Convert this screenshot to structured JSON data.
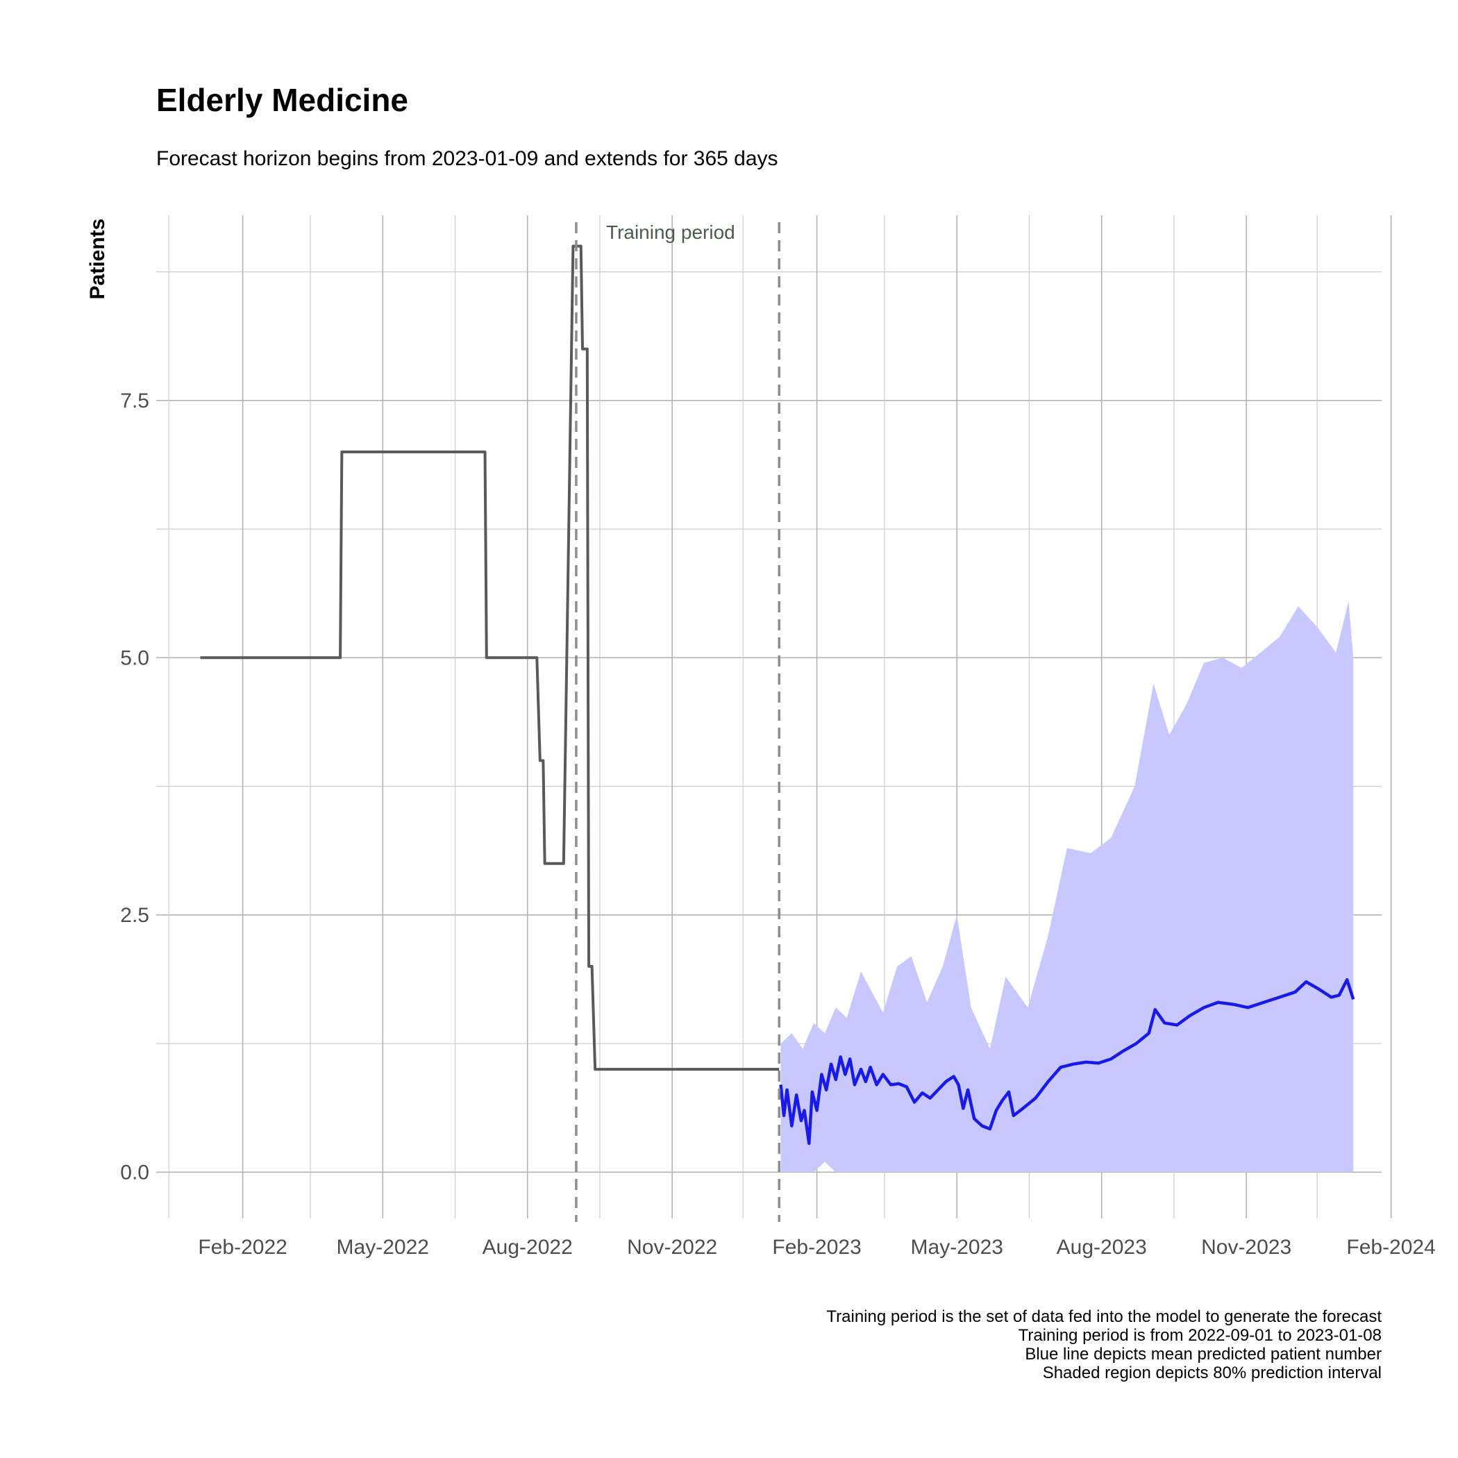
{
  "chart_data": {
    "type": "line",
    "title": "Elderly Medicine",
    "subtitle": "Forecast horizon begins from 2023-01-09 and extends for 365 days",
    "xlabel": "",
    "ylabel": "Patients",
    "x_type": "date",
    "xlim": [
      "2021-12-08",
      "2024-01-26"
    ],
    "ylim": [
      -0.45,
      9.3
    ],
    "grid": true,
    "x_ticks": [
      {
        "date": "2022-02-01",
        "label": "Feb-2022"
      },
      {
        "date": "2022-05-01",
        "label": "May-2022"
      },
      {
        "date": "2022-08-01",
        "label": "Aug-2022"
      },
      {
        "date": "2022-11-01",
        "label": "Nov-2022"
      },
      {
        "date": "2023-02-01",
        "label": "Feb-2023"
      },
      {
        "date": "2023-05-01",
        "label": "May-2023"
      },
      {
        "date": "2023-08-01",
        "label": "Aug-2023"
      },
      {
        "date": "2023-11-01",
        "label": "Nov-2023"
      },
      {
        "date": "2024-02-01",
        "label": "Feb-2024"
      }
    ],
    "x_minor_ticks": [
      "2021-12-16",
      "2022-03-16",
      "2022-06-16",
      "2022-09-16",
      "2022-12-16",
      "2023-03-16",
      "2023-06-16",
      "2023-09-16",
      "2023-12-16"
    ],
    "y_ticks": [
      {
        "value": 0,
        "label": "0.0"
      },
      {
        "value": 2.5,
        "label": "2.5"
      },
      {
        "value": 5,
        "label": "5.0"
      },
      {
        "value": 7.5,
        "label": "7.5"
      }
    ],
    "y_minor_ticks": [
      1.25,
      3.75,
      6.25,
      8.75
    ],
    "training_period": {
      "start": "2022-09-01",
      "end": "2023-01-08",
      "label": "Training period"
    },
    "series": [
      {
        "role": "historical",
        "color": "#595959",
        "points": [
          [
            "2022-01-05",
            5
          ],
          [
            "2022-04-04",
            5
          ],
          [
            "2022-04-05",
            7
          ],
          [
            "2022-07-05",
            7
          ],
          [
            "2022-07-06",
            5
          ],
          [
            "2022-08-07",
            5
          ],
          [
            "2022-08-09",
            4
          ],
          [
            "2022-08-11",
            4
          ],
          [
            "2022-08-12",
            3
          ],
          [
            "2022-08-24",
            3
          ],
          [
            "2022-08-30",
            9
          ],
          [
            "2022-09-04",
            9
          ],
          [
            "2022-09-05",
            8
          ],
          [
            "2022-09-08",
            8
          ],
          [
            "2022-09-09",
            2
          ],
          [
            "2022-09-11",
            2
          ],
          [
            "2022-09-13",
            1
          ],
          [
            "2023-01-08",
            1
          ]
        ]
      },
      {
        "role": "forecast_mean",
        "color": "#1a1ae6",
        "points": [
          [
            "2023-01-09",
            0.85
          ],
          [
            "2023-01-11",
            0.55
          ],
          [
            "2023-01-13",
            0.8
          ],
          [
            "2023-01-16",
            0.45
          ],
          [
            "2023-01-19",
            0.75
          ],
          [
            "2023-01-22",
            0.5
          ],
          [
            "2023-01-24",
            0.6
          ],
          [
            "2023-01-27",
            0.28
          ],
          [
            "2023-01-29",
            0.78
          ],
          [
            "2023-02-01",
            0.6
          ],
          [
            "2023-02-04",
            0.95
          ],
          [
            "2023-02-07",
            0.8
          ],
          [
            "2023-02-10",
            1.05
          ],
          [
            "2023-02-13",
            0.9
          ],
          [
            "2023-02-16",
            1.12
          ],
          [
            "2023-02-19",
            0.95
          ],
          [
            "2023-02-22",
            1.1
          ],
          [
            "2023-02-25",
            0.85
          ],
          [
            "2023-03-01",
            1.0
          ],
          [
            "2023-03-04",
            0.88
          ],
          [
            "2023-03-07",
            1.02
          ],
          [
            "2023-03-11",
            0.85
          ],
          [
            "2023-03-15",
            0.95
          ],
          [
            "2023-03-20",
            0.85
          ],
          [
            "2023-03-25",
            0.86
          ],
          [
            "2023-03-30",
            0.83
          ],
          [
            "2023-04-04",
            0.68
          ],
          [
            "2023-04-09",
            0.77
          ],
          [
            "2023-04-14",
            0.72
          ],
          [
            "2023-04-19",
            0.8
          ],
          [
            "2023-04-24",
            0.88
          ],
          [
            "2023-04-29",
            0.93
          ],
          [
            "2023-05-02",
            0.85
          ],
          [
            "2023-05-05",
            0.62
          ],
          [
            "2023-05-08",
            0.8
          ],
          [
            "2023-05-12",
            0.52
          ],
          [
            "2023-05-17",
            0.45
          ],
          [
            "2023-05-22",
            0.42
          ],
          [
            "2023-05-26",
            0.6
          ],
          [
            "2023-05-30",
            0.7
          ],
          [
            "2023-06-03",
            0.78
          ],
          [
            "2023-06-06",
            0.55
          ],
          [
            "2023-06-12",
            0.62
          ],
          [
            "2023-06-20",
            0.72
          ],
          [
            "2023-06-28",
            0.88
          ],
          [
            "2023-07-06",
            1.02
          ],
          [
            "2023-07-14",
            1.05
          ],
          [
            "2023-07-22",
            1.07
          ],
          [
            "2023-07-30",
            1.06
          ],
          [
            "2023-08-07",
            1.1
          ],
          [
            "2023-08-15",
            1.18
          ],
          [
            "2023-08-23",
            1.25
          ],
          [
            "2023-08-31",
            1.35
          ],
          [
            "2023-09-04",
            1.58
          ],
          [
            "2023-09-10",
            1.45
          ],
          [
            "2023-09-18",
            1.43
          ],
          [
            "2023-09-26",
            1.52
          ],
          [
            "2023-10-05",
            1.6
          ],
          [
            "2023-10-14",
            1.65
          ],
          [
            "2023-10-24",
            1.63
          ],
          [
            "2023-11-02",
            1.6
          ],
          [
            "2023-11-12",
            1.65
          ],
          [
            "2023-11-22",
            1.7
          ],
          [
            "2023-12-02",
            1.75
          ],
          [
            "2023-12-09",
            1.85
          ],
          [
            "2023-12-17",
            1.78
          ],
          [
            "2023-12-25",
            1.7
          ],
          [
            "2023-12-30",
            1.72
          ],
          [
            "2024-01-04",
            1.87
          ],
          [
            "2024-01-08",
            1.68
          ]
        ]
      },
      {
        "role": "prediction_interval",
        "fill": "#c8c8ff",
        "points": [
          [
            "2023-01-09",
            0.0,
            1.25
          ],
          [
            "2023-01-16",
            0.0,
            1.35
          ],
          [
            "2023-01-23",
            0.0,
            1.2
          ],
          [
            "2023-01-30",
            0.0,
            1.45
          ],
          [
            "2023-02-06",
            0.1,
            1.35
          ],
          [
            "2023-02-13",
            0.0,
            1.6
          ],
          [
            "2023-02-20",
            0.0,
            1.5
          ],
          [
            "2023-03-01",
            0.0,
            1.95
          ],
          [
            "2023-03-08",
            0.0,
            1.75
          ],
          [
            "2023-03-15",
            0.0,
            1.55
          ],
          [
            "2023-03-24",
            0.0,
            2.0
          ],
          [
            "2023-04-02",
            0.0,
            2.1
          ],
          [
            "2023-04-12",
            0.0,
            1.65
          ],
          [
            "2023-04-22",
            0.0,
            2.0
          ],
          [
            "2023-05-01",
            0.0,
            2.5
          ],
          [
            "2023-05-10",
            0.0,
            1.6
          ],
          [
            "2023-05-22",
            0.0,
            1.2
          ],
          [
            "2023-06-01",
            0.0,
            1.9
          ],
          [
            "2023-06-15",
            0.0,
            1.6
          ],
          [
            "2023-06-28",
            0.0,
            2.3
          ],
          [
            "2023-07-10",
            0.0,
            3.15
          ],
          [
            "2023-07-25",
            0.0,
            3.1
          ],
          [
            "2023-08-07",
            0.0,
            3.25
          ],
          [
            "2023-08-22",
            0.0,
            3.75
          ],
          [
            "2023-09-03",
            0.0,
            4.75
          ],
          [
            "2023-09-13",
            0.0,
            4.25
          ],
          [
            "2023-09-24",
            0.0,
            4.55
          ],
          [
            "2023-10-05",
            0.0,
            4.95
          ],
          [
            "2023-10-17",
            0.0,
            5.0
          ],
          [
            "2023-10-29",
            0.0,
            4.9
          ],
          [
            "2023-11-10",
            0.0,
            5.05
          ],
          [
            "2023-11-22",
            0.0,
            5.2
          ],
          [
            "2023-12-04",
            0.0,
            5.5
          ],
          [
            "2023-12-16",
            0.0,
            5.3
          ],
          [
            "2023-12-28",
            0.0,
            5.05
          ],
          [
            "2024-01-05",
            0.0,
            5.55
          ],
          [
            "2024-01-08",
            0.0,
            5.0
          ]
        ]
      }
    ],
    "caption": [
      "Training period is the set of data fed into the model to generate the forecast",
      "Training period is from 2022-09-01 to 2023-01-08",
      "Blue line depicts mean predicted patient number",
      "Shaded region depicts 80% prediction interval"
    ]
  }
}
